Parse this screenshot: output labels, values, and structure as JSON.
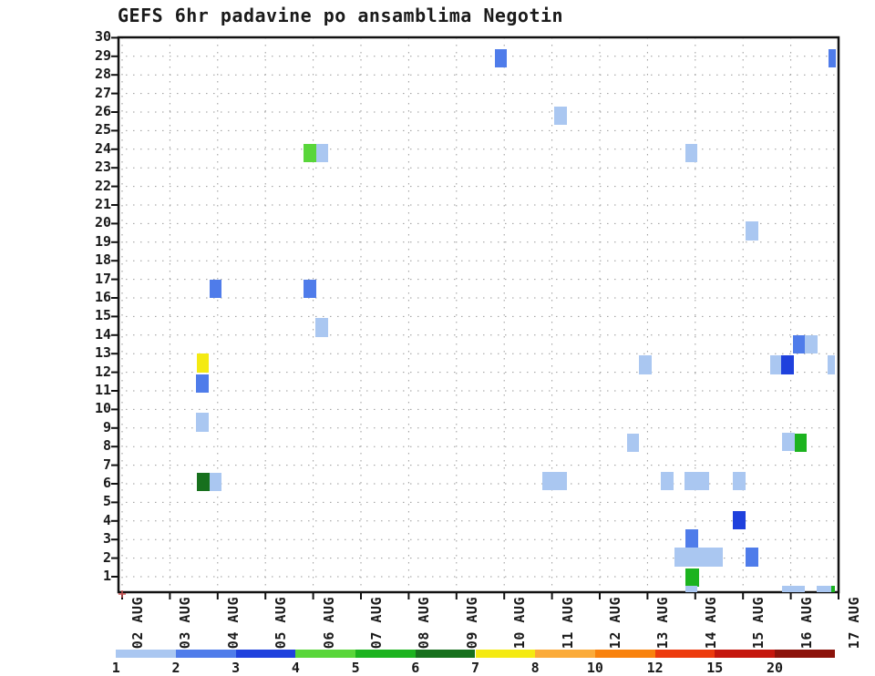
{
  "title": "GEFS 6hr padavine po ansamblima Negotin",
  "chart_data": {
    "type": "heatmap",
    "title": "GEFS 6hr padavine po ansamblima Negotin",
    "description": "6-hourly precipitation occurrence per GEFS ensemble member; x = time (6hr slots), y = ensemble member, color = precipitation amount (mm)",
    "x_axis": {
      "labels": [
        "02 AUG",
        "03 AUG",
        "04 AUG",
        "05 AUG",
        "06 AUG",
        "07 AUG",
        "08 AUG",
        "09 AUG",
        "10 AUG",
        "11 AUG",
        "12 AUG",
        "13 AUG",
        "14 AUG",
        "15 AUG",
        "16 AUG",
        "17 AUG"
      ],
      "range_days": [
        0,
        15
      ]
    },
    "y_axis": {
      "ticks": [
        1,
        2,
        3,
        4,
        5,
        6,
        7,
        8,
        9,
        10,
        11,
        12,
        13,
        14,
        15,
        16,
        17,
        18,
        19,
        20,
        21,
        22,
        23,
        24,
        25,
        26,
        27,
        28,
        29,
        30
      ],
      "range": [
        0.5,
        30
      ]
    },
    "grid": "dotted",
    "colorbar": {
      "tick_labels": [
        "1",
        "2",
        "3",
        "4",
        "5",
        "6",
        "7",
        "8",
        "10",
        "12",
        "15",
        "20"
      ],
      "colors": [
        "#aac7f1",
        "#4f7cea",
        "#1f41dd",
        "#59d63a",
        "#1cb31f",
        "#17701d",
        "#f4ea12",
        "#fbab3a",
        "#f9820d",
        "#ed3b0d",
        "#c5170d",
        "#8c130b"
      ]
    },
    "cells": [
      {
        "d": 7.8,
        "w": 0.25,
        "m": 28.9,
        "ci": 1
      },
      {
        "d": 14.79,
        "w": 0.15,
        "m": 28.9,
        "ci": 1
      },
      {
        "d": 9.05,
        "w": 0.26,
        "m": 25.8,
        "ci": 0
      },
      {
        "d": 3.8,
        "w": 0.26,
        "m": 23.8,
        "ci": 3
      },
      {
        "d": 4.06,
        "w": 0.25,
        "m": 23.8,
        "ci": 0
      },
      {
        "d": 11.79,
        "w": 0.26,
        "m": 23.8,
        "ci": 0
      },
      {
        "d": 13.06,
        "w": 0.27,
        "m": 19.6,
        "ci": 0
      },
      {
        "d": 1.83,
        "w": 0.25,
        "m": 16.5,
        "ci": 1
      },
      {
        "d": 3.8,
        "w": 0.26,
        "m": 16.5,
        "ci": 1
      },
      {
        "d": 4.05,
        "w": 0.26,
        "m": 14.4,
        "ci": 0
      },
      {
        "d": 14.05,
        "w": 0.25,
        "m": 13.5,
        "ci": 1
      },
      {
        "d": 14.3,
        "w": 0.26,
        "m": 13.5,
        "ci": 0
      },
      {
        "d": 10.82,
        "w": 0.27,
        "m": 12.4,
        "ci": 0
      },
      {
        "d": 13.57,
        "w": 0.25,
        "m": 12.4,
        "ci": 0
      },
      {
        "d": 13.8,
        "w": 0.26,
        "m": 12.4,
        "ci": 2
      },
      {
        "d": 14.78,
        "w": 0.15,
        "m": 12.4,
        "ci": 0
      },
      {
        "d": 1.56,
        "w": 0.26,
        "m": 12.5,
        "ci": 6
      },
      {
        "d": 1.55,
        "w": 0.26,
        "m": 11.4,
        "ci": 1
      },
      {
        "d": 1.55,
        "w": 0.26,
        "m": 9.3,
        "ci": 0
      },
      {
        "d": 10.57,
        "w": 0.26,
        "m": 8.2,
        "ci": 0
      },
      {
        "d": 13.82,
        "w": 0.26,
        "m": 8.25,
        "ci": 0
      },
      {
        "d": 14.08,
        "w": 0.25,
        "m": 8.2,
        "ci": 4
      },
      {
        "d": 1.56,
        "w": 0.27,
        "m": 6.1,
        "ci": 5
      },
      {
        "d": 1.83,
        "w": 0.25,
        "m": 6.1,
        "ci": 0
      },
      {
        "d": 8.79,
        "w": 0.52,
        "m": 6.15,
        "ci": 0
      },
      {
        "d": 11.28,
        "w": 0.27,
        "m": 6.15,
        "ci": 0
      },
      {
        "d": 11.77,
        "w": 0.52,
        "m": 6.15,
        "ci": 0
      },
      {
        "d": 12.79,
        "w": 0.26,
        "m": 6.15,
        "ci": 0
      },
      {
        "d": 12.79,
        "w": 0.27,
        "m": 4.05,
        "ci": 2
      },
      {
        "d": 11.79,
        "w": 0.27,
        "m": 3.05,
        "ci": 1
      },
      {
        "d": 11.56,
        "w": 1.01,
        "m": 2.05,
        "ci": 0
      },
      {
        "d": 13.06,
        "w": 0.27,
        "m": 2.05,
        "ci": 1
      },
      {
        "d": 11.79,
        "w": 0.29,
        "m": 0.95,
        "ci": 4
      },
      {
        "d": 11.79,
        "w": 0.26,
        "m": 0.0,
        "ci": 0
      },
      {
        "d": 13.82,
        "w": 0.48,
        "m": 0.0,
        "ci": 0
      },
      {
        "d": 14.55,
        "w": 0.29,
        "m": 0.0,
        "ci": 0
      },
      {
        "d": 14.84,
        "w": 0.08,
        "m": 0.0,
        "ci": 4
      }
    ]
  }
}
